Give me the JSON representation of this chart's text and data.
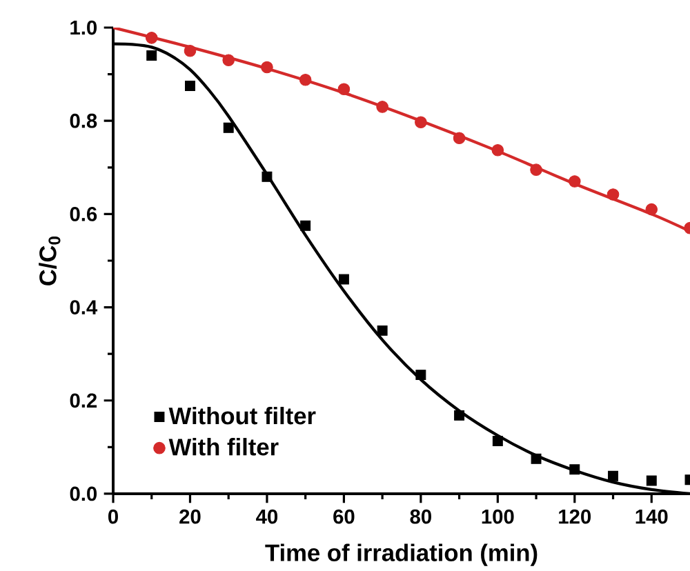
{
  "chart_data": {
    "type": "scatter",
    "xlabel": "Time of irradiation (min)",
    "ylabel": "C/C$_{0}$",
    "xlim": [
      0,
      150
    ],
    "ylim": [
      0,
      1.0
    ],
    "xticks": [
      0,
      20,
      40,
      60,
      80,
      100,
      120,
      140
    ],
    "yticks": [
      {
        "value": 0,
        "label": "0.0"
      },
      {
        "value": 0.2,
        "label": "0.2"
      },
      {
        "value": 0.4,
        "label": "0.4"
      },
      {
        "value": 0.6,
        "label": "0.6"
      },
      {
        "value": 0.8,
        "label": "0.8"
      },
      {
        "value": 1.0,
        "label": "1.0"
      }
    ],
    "legend": "bottom left",
    "grid": false,
    "series": [
      {
        "name": "Without filter",
        "marker": "square",
        "color": "#000000",
        "x": [
          10,
          20,
          30,
          40,
          50,
          60,
          70,
          80,
          90,
          100,
          110,
          120,
          130,
          140,
          150
        ],
        "values": [
          0.94,
          0.875,
          0.785,
          0.68,
          0.575,
          0.46,
          0.35,
          0.255,
          0.168,
          0.113,
          0.075,
          0.052,
          0.038,
          0.028,
          0.03
        ]
      },
      {
        "name": "With filter",
        "marker": "circle",
        "color": "#d42a2a",
        "x": [
          10,
          20,
          30,
          40,
          50,
          60,
          70,
          80,
          90,
          100,
          110,
          120,
          130,
          140,
          150
        ],
        "values": [
          0.978,
          0.95,
          0.93,
          0.915,
          0.888,
          0.868,
          0.83,
          0.797,
          0.763,
          0.737,
          0.695,
          0.67,
          0.642,
          0.61,
          0.57
        ]
      },
      {
        "type": "line",
        "marker": "none",
        "line_style": "solid",
        "color": "#000000",
        "x": [
          0,
          5,
          10,
          15,
          20,
          25,
          30,
          40,
          50,
          60,
          70,
          80,
          90,
          100,
          110,
          120,
          130,
          140,
          150
        ],
        "values": [
          0.965,
          0.964,
          0.958,
          0.94,
          0.91,
          0.865,
          0.81,
          0.685,
          0.555,
          0.435,
          0.33,
          0.245,
          0.178,
          0.125,
          0.082,
          0.05,
          0.025,
          0.009,
          0
        ]
      },
      {
        "type": "line",
        "marker": "none",
        "line_style": "solid",
        "color": "#d42a2a",
        "x": [
          0,
          20,
          40,
          60,
          80,
          100,
          120,
          140,
          150
        ],
        "values": [
          1.0,
          0.958,
          0.912,
          0.86,
          0.8,
          0.735,
          0.665,
          0.6,
          0.563
        ]
      }
    ]
  }
}
